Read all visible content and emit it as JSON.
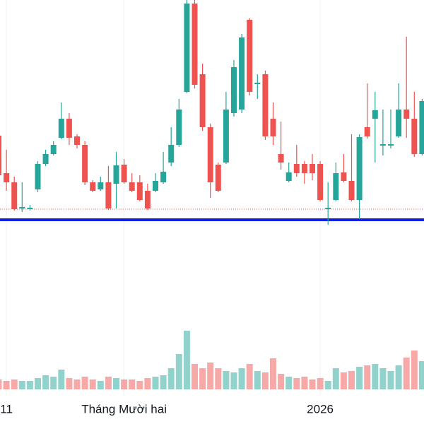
{
  "chart_data": {
    "type": "candlestick",
    "open": [
      128,
      75,
      62,
      25,
      24,
      52,
      88,
      102,
      125,
      152,
      127,
      115,
      62,
      52,
      62,
      60,
      87,
      62,
      62,
      50,
      50,
      62,
      90,
      115,
      190,
      315,
      215,
      140,
      87,
      90,
      160,
      165,
      292,
      201,
      215,
      152,
      102,
      64,
      88,
      88,
      88,
      88,
      24,
      37,
      76,
      64,
      37,
      140,
      152,
      114,
      114,
      127,
      165,
      152,
      102
    ],
    "high": [
      130,
      108,
      70,
      62,
      30,
      92,
      108,
      120,
      175,
      160,
      130,
      120,
      65,
      70,
      85,
      105,
      95,
      75,
      72,
      60,
      75,
      105,
      140,
      180,
      320,
      320,
      230,
      145,
      90,
      190,
      235,
      272,
      294,
      215,
      220,
      175,
      148,
      90,
      115,
      92,
      102,
      92,
      62,
      90,
      102,
      130,
      130,
      202,
      190,
      165,
      165,
      202,
      268,
      190,
      180
    ],
    "low": [
      70,
      50,
      22,
      20,
      22,
      48,
      85,
      100,
      123,
      115,
      110,
      58,
      48,
      50,
      23,
      25,
      60,
      48,
      35,
      23,
      48,
      60,
      85,
      112,
      188,
      195,
      135,
      40,
      48,
      88,
      155,
      160,
      185,
      180,
      122,
      115,
      80,
      62,
      70,
      60,
      65,
      35,
      2,
      35,
      62,
      35,
      10,
      124,
      90,
      100,
      110,
      125,
      125,
      98,
      100
    ],
    "close": [
      72,
      62,
      24,
      27,
      26,
      88,
      102,
      115,
      152,
      125,
      115,
      62,
      50,
      62,
      25,
      86,
      62,
      50,
      37,
      25,
      64,
      77,
      115,
      165,
      315,
      200,
      140,
      62,
      50,
      165,
      225,
      267,
      190,
      203,
      127,
      127,
      90,
      76,
      75,
      75,
      75,
      37,
      26,
      75,
      64,
      37,
      126,
      127,
      164,
      116,
      116,
      165,
      152,
      102,
      177
    ],
    "volume": [
      14,
      12,
      14,
      12,
      12,
      16,
      20,
      18,
      28,
      16,
      14,
      18,
      14,
      12,
      18,
      16,
      14,
      14,
      12,
      16,
      18,
      20,
      30,
      50,
      83,
      36,
      30,
      38,
      30,
      26,
      24,
      30,
      36,
      26,
      24,
      44,
      22,
      18,
      16,
      18,
      14,
      16,
      12,
      30,
      24,
      26,
      32,
      34,
      36,
      30,
      26,
      34,
      45,
      55,
      40
    ],
    "up_color": "#26a69a",
    "down_color": "#ef5350",
    "ylim": [
      0,
      320
    ],
    "volume_lim": [
      0,
      100
    ],
    "hlines": [
      {
        "value": 9,
        "color": "#1020e0",
        "style": "solid"
      },
      {
        "value": 24,
        "color": "#ef5350",
        "style": "dotted"
      }
    ],
    "x_labels": [
      {
        "index": 1,
        "label": "11"
      },
      {
        "index": 16,
        "label": "Tháng Mười hai"
      },
      {
        "index": 41,
        "label": "2026"
      }
    ]
  }
}
